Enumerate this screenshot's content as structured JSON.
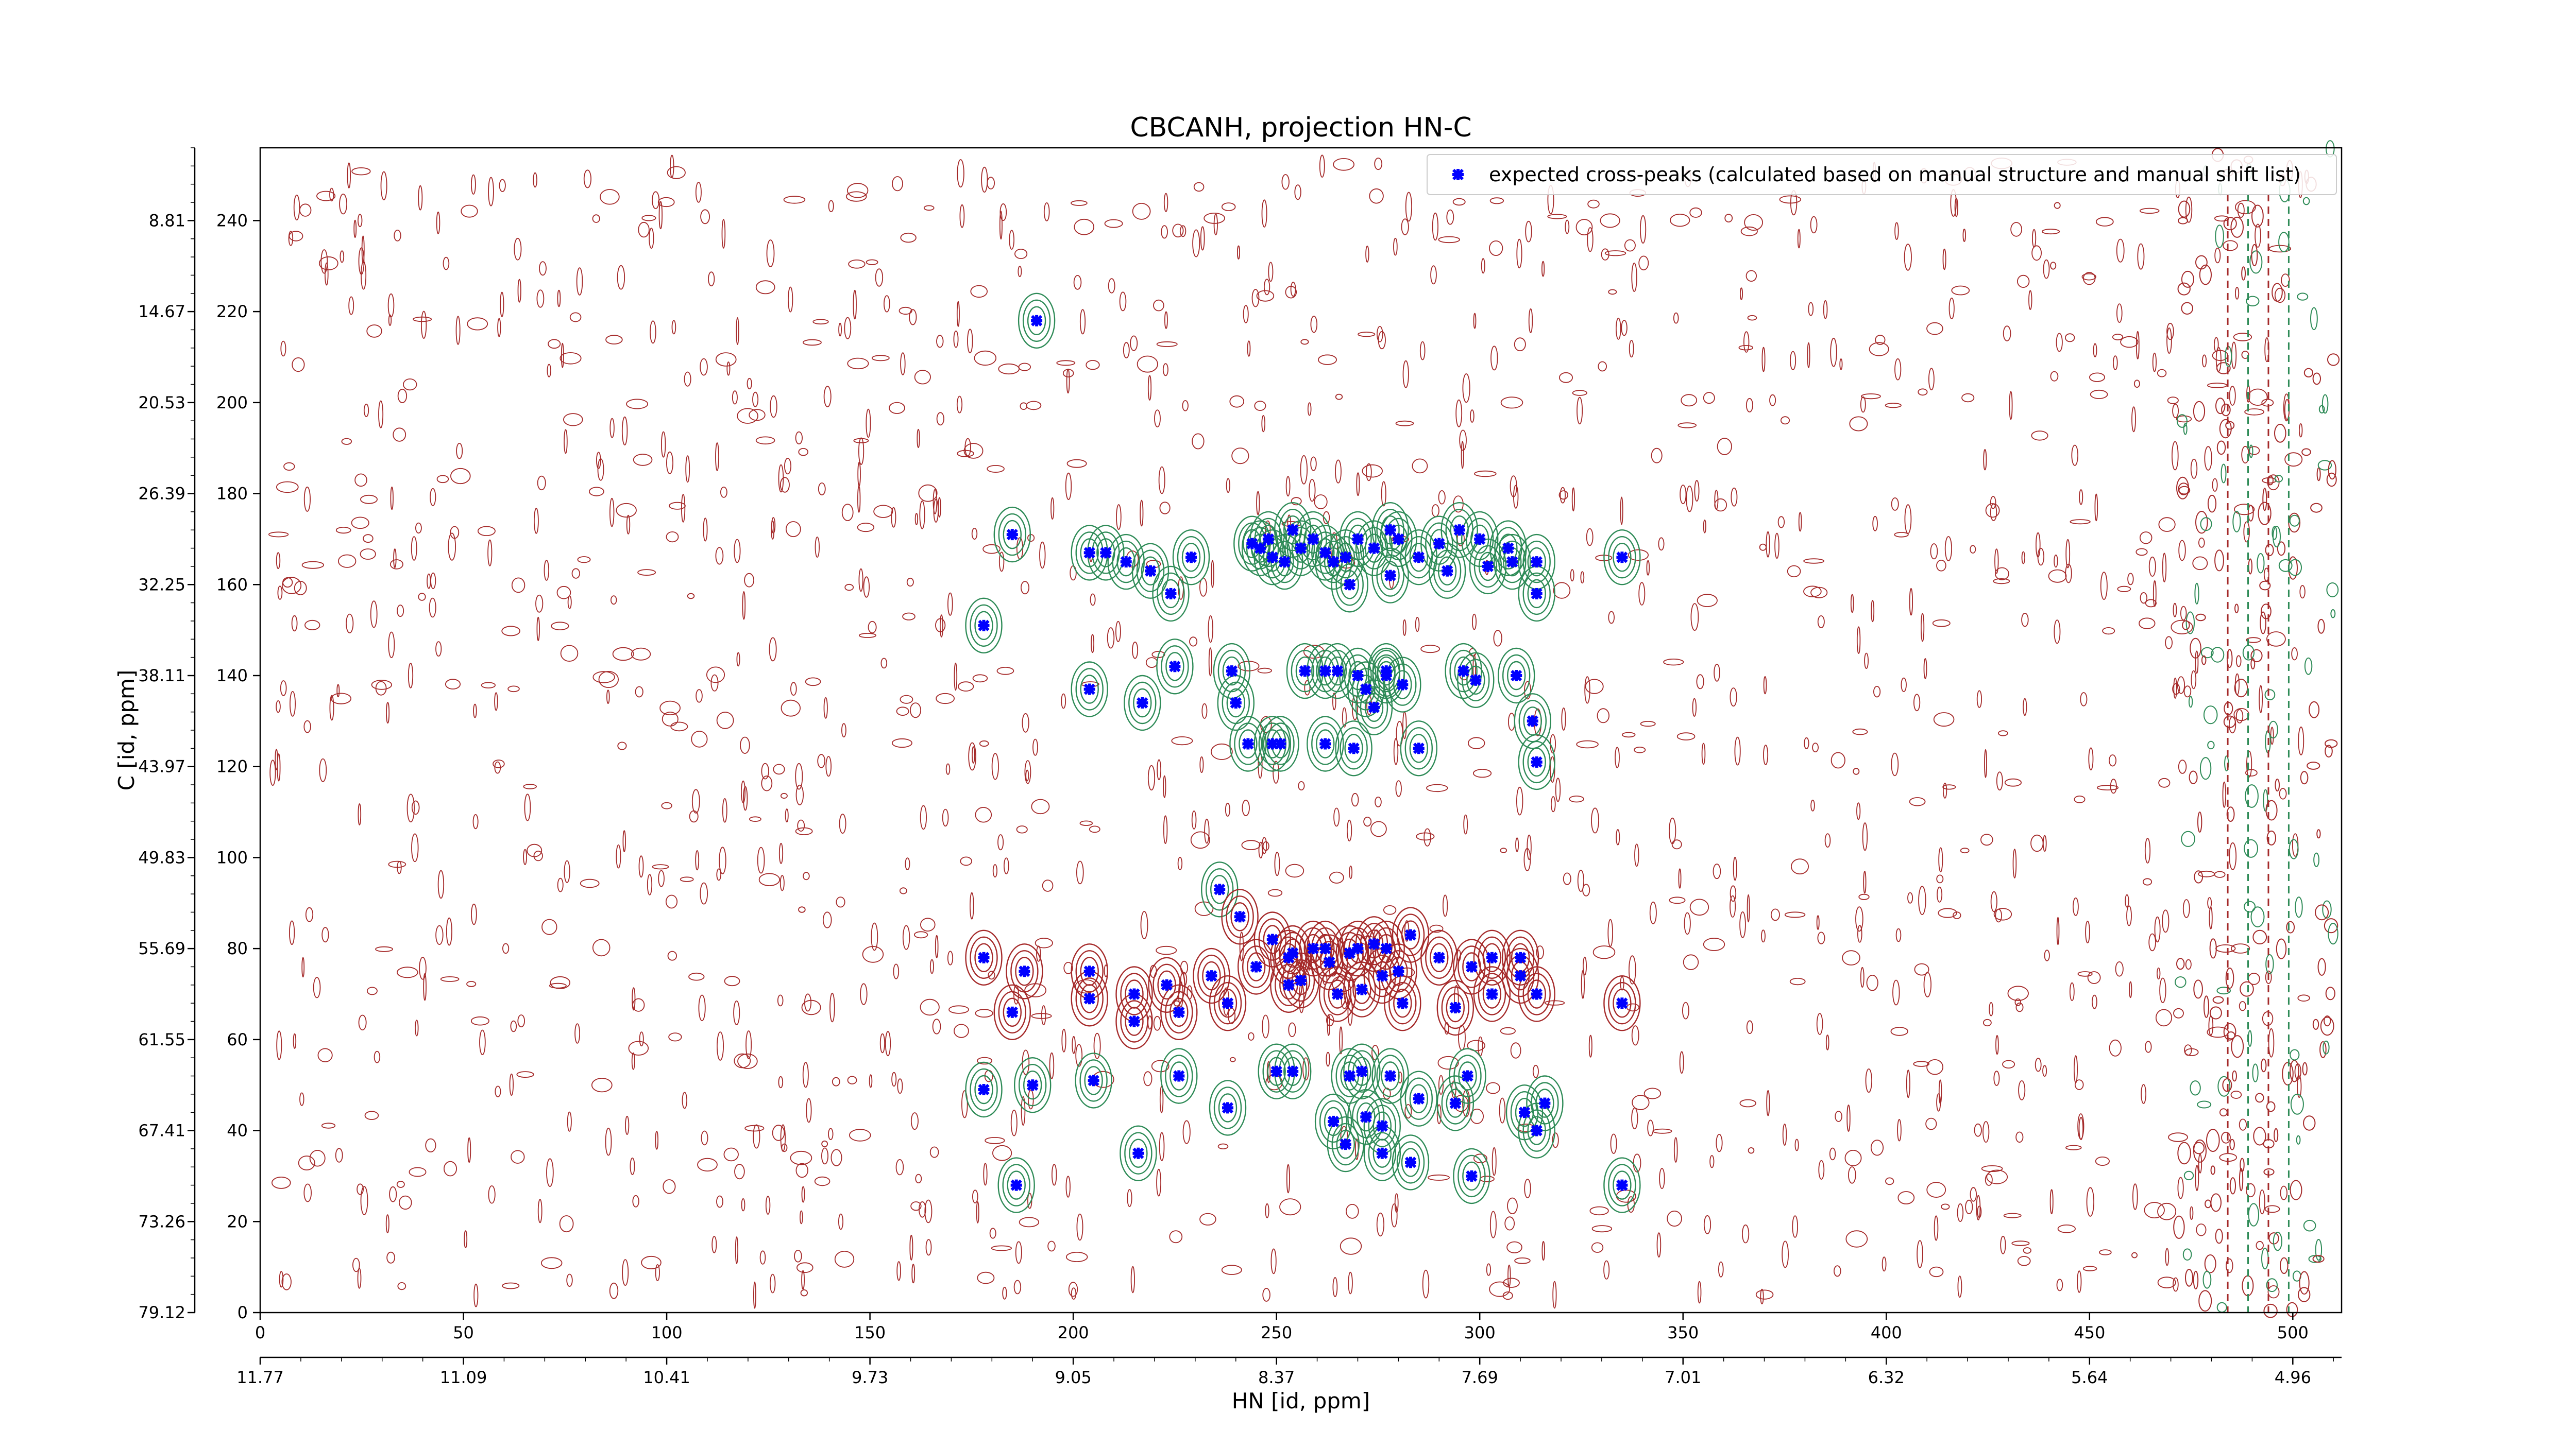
{
  "chart_data": {
    "type": "scatter",
    "title": "CBCANH, projection HN-C",
    "xlabel": "HN [id, ppm]",
    "ylabel": "C [id, ppm]",
    "xlim": [
      0,
      512
    ],
    "ylim": [
      0,
      256
    ],
    "x_ticks_index": [
      "0",
      "50",
      "100",
      "150",
      "200",
      "250",
      "300",
      "350",
      "400",
      "450",
      "500"
    ],
    "x_ticks_ppm": [
      "11.77",
      "11.09",
      "10.41",
      "9.73",
      "9.05",
      "8.37",
      "7.69",
      "7.01",
      "6.32",
      "5.64",
      "4.96"
    ],
    "y_ticks_index": [
      "0",
      "20",
      "40",
      "60",
      "80",
      "100",
      "120",
      "140",
      "160",
      "180",
      "200",
      "220",
      "240"
    ],
    "y_ticks_ppm": [
      "79.12",
      "73.26",
      "67.41",
      "61.55",
      "55.69",
      "49.83",
      "43.97",
      "38.11",
      "32.25",
      "26.39",
      "20.53",
      "14.67",
      "8.81"
    ],
    "grid": false,
    "legend_position": "top-right",
    "colors": {
      "marker": "#0000ff",
      "contour_negative": "#a52a2a",
      "contour_positive": "#2e8b57"
    },
    "series": [
      {
        "name": "expected cross-peaks (calculated based on manual structure and manual shift list)",
        "x": [
          191,
          185,
          204,
          208,
          213,
          178,
          204,
          217,
          229,
          224,
          219,
          248,
          246,
          244,
          249,
          252,
          254,
          256,
          259,
          262,
          264,
          267,
          270,
          274,
          278,
          280,
          285,
          290,
          295,
          300,
          307,
          314,
          292,
          302,
          308,
          314,
          268,
          278,
          239,
          265,
          277,
          296,
          313,
          335,
          225,
          240,
          257,
          262,
          270,
          272,
          274,
          277,
          281,
          299,
          309,
          243,
          249,
          251,
          262,
          269,
          285,
          314,
          236,
          241,
          249,
          254,
          259,
          263,
          268,
          270,
          274,
          277,
          283,
          290,
          298,
          303,
          310,
          178,
          188,
          204,
          215,
          223,
          234,
          245,
          253,
          262,
          276,
          280,
          185,
          204,
          215,
          226,
          238,
          253,
          256,
          265,
          271,
          281,
          294,
          303,
          310,
          314,
          335,
          178,
          190,
          205,
          226,
          250,
          254,
          268,
          271,
          278,
          285,
          297,
          311,
          316,
          238,
          264,
          272,
          276,
          294,
          314,
          335,
          186,
          216,
          267,
          276,
          283,
          298
        ],
        "y": [
          218,
          171,
          167,
          167,
          165,
          151,
          137,
          134,
          166,
          158,
          163,
          170,
          168,
          169,
          166,
          165,
          172,
          168,
          170,
          167,
          165,
          166,
          170,
          168,
          172,
          170,
          166,
          169,
          172,
          170,
          168,
          165,
          163,
          164,
          165,
          158,
          160,
          162,
          141,
          141,
          140,
          141,
          130,
          166,
          142,
          134,
          141,
          141,
          140,
          137,
          133,
          141,
          138,
          139,
          140,
          125,
          125,
          125,
          125,
          124,
          124,
          121,
          93,
          87,
          82,
          79,
          80,
          77,
          79,
          80,
          81,
          80,
          83,
          78,
          76,
          78,
          78,
          78,
          75,
          75,
          70,
          72,
          74,
          76,
          78,
          80,
          74,
          75,
          66,
          69,
          64,
          66,
          68,
          72,
          73,
          70,
          71,
          68,
          67,
          70,
          74,
          70,
          68,
          49,
          50,
          51,
          52,
          53,
          53,
          52,
          53,
          52,
          47,
          52,
          44,
          46,
          45,
          42,
          43,
          41,
          46,
          40,
          28,
          28,
          35,
          37,
          35,
          33,
          30
        ]
      }
    ]
  }
}
